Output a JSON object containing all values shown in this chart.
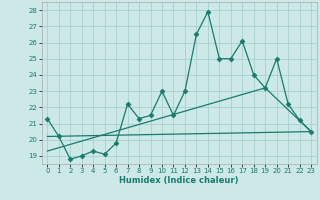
{
  "xlabel": "Humidex (Indice chaleur)",
  "background_color": "#cce9e7",
  "grid_color": "#a8d0ce",
  "line_color": "#1a7a6e",
  "xlim": [
    -0.5,
    23.5
  ],
  "ylim": [
    18.5,
    28.5
  ],
  "xticks": [
    0,
    1,
    2,
    3,
    4,
    5,
    6,
    7,
    8,
    9,
    10,
    11,
    12,
    13,
    14,
    15,
    16,
    17,
    18,
    19,
    20,
    21,
    22,
    23
  ],
  "yticks": [
    19,
    20,
    21,
    22,
    23,
    24,
    25,
    26,
    27,
    28
  ],
  "series": [
    {
      "x": [
        0,
        1,
        2,
        3,
        4,
        5,
        6,
        7,
        8,
        9,
        10,
        11,
        12,
        13,
        14,
        15,
        16,
        17,
        18,
        19,
        20,
        21,
        22,
        23
      ],
      "y": [
        21.3,
        20.2,
        18.8,
        19.0,
        19.3,
        19.1,
        19.8,
        22.2,
        21.3,
        21.5,
        23.0,
        21.5,
        23.0,
        26.5,
        27.9,
        25.0,
        25.0,
        26.1,
        24.0,
        23.2,
        25.0,
        22.2,
        21.2,
        20.5
      ],
      "marker": "D",
      "markersize": 2.5,
      "linewidth": 0.9
    },
    {
      "x": [
        0,
        23
      ],
      "y": [
        20.2,
        20.5
      ],
      "marker": null,
      "linewidth": 0.9
    },
    {
      "x": [
        0,
        19,
        23
      ],
      "y": [
        19.3,
        23.2,
        20.5
      ],
      "marker": null,
      "linewidth": 0.9
    }
  ]
}
